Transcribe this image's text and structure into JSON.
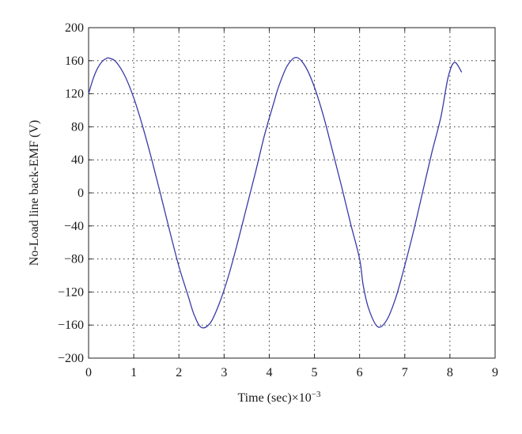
{
  "chart_data": {
    "type": "line",
    "title": "",
    "xlabel": "Time (sec)",
    "xlabel_exponent": "×10",
    "xlabel_exponent_power": "−3",
    "ylabel": "No-Load line back-EMF (V)",
    "xlim": [
      0,
      9
    ],
    "ylim": [
      -200,
      200
    ],
    "grid": true,
    "x_ticks": [
      "0",
      "1",
      "2",
      "3",
      "4",
      "5",
      "6",
      "7",
      "8",
      "9"
    ],
    "y_ticks": [
      "200",
      "160",
      "120",
      "80",
      "40",
      "0",
      "−40",
      "−80",
      "−120",
      "−160",
      "−200"
    ],
    "line_color": "#3a3aa8",
    "series": [
      {
        "x": [
          0.0,
          0.1,
          0.2,
          0.3,
          0.4,
          0.46,
          0.6,
          0.8,
          1.0,
          1.2,
          1.4,
          1.6,
          1.8,
          2.0,
          2.2,
          2.34,
          2.5,
          2.7,
          2.9,
          3.1,
          3.3,
          3.5,
          3.7,
          3.9,
          4.1,
          4.21,
          4.4,
          4.6,
          4.8,
          5.0,
          5.2,
          5.4,
          5.6,
          5.8,
          6.0,
          6.08,
          6.2,
          6.4,
          6.6,
          6.8,
          7.0,
          7.2,
          7.4,
          7.6,
          7.8,
          7.96,
          8.1,
          8.26
        ],
        "values": [
          120,
          138,
          151,
          159,
          163,
          163,
          159,
          142,
          115,
          80,
          40,
          -3,
          -47,
          -89,
          -124,
          -148,
          -163,
          -157,
          -133,
          -100,
          -60,
          -17,
          26,
          71,
          109,
          129,
          154,
          164,
          153,
          128,
          93,
          51,
          8,
          -37,
          -80,
          -112,
          -140,
          -162,
          -154,
          -127,
          -88,
          -45,
          2,
          49,
          92,
          140,
          158,
          146
        ]
      }
    ]
  }
}
